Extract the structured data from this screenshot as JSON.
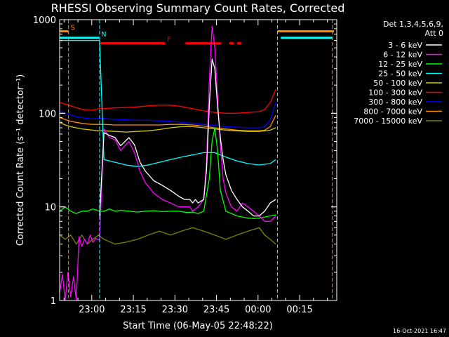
{
  "chart_data": {
    "type": "line",
    "title": "RHESSI Observing Summary Count Rates, Corrected",
    "xlabel": "Start Time (06-May-05 22:48:22)",
    "ylabel": "Corrected Count Rate (s⁻¹ detector⁻¹)",
    "yscale": "log",
    "ylim": [
      1,
      1000
    ],
    "xlim_minutes_after_start": [
      0,
      100
    ],
    "y_ticks": [
      "1",
      "10",
      "100",
      "1000"
    ],
    "x_ticks": [
      {
        "label": "23:00",
        "t": 11.6
      },
      {
        "label": "23:15",
        "t": 26.6
      },
      {
        "label": "23:30",
        "t": 41.6
      },
      {
        "label": "23:45",
        "t": 56.6
      },
      {
        "label": "00:00",
        "t": 71.6
      },
      {
        "label": "00:15",
        "t": 86.6
      }
    ],
    "legend": {
      "placement": "right",
      "header": [
        "Det 1,3,4,5,6,9,",
        "Att 0"
      ],
      "entries": [
        {
          "label": "3 - 6 keV",
          "color": "#ffffff"
        },
        {
          "label": "6 - 12 keV",
          "color": "#ff00ff"
        },
        {
          "label": "12 - 25 keV",
          "color": "#00ff00"
        },
        {
          "label": "25 - 50 keV",
          "color": "#00ffff"
        },
        {
          "label": "50 - 100 keV",
          "color": "#d4c800"
        },
        {
          "label": "100 - 300 keV",
          "color": "#ff0000"
        },
        {
          "label": "300 - 800 keV",
          "color": "#0000ff"
        },
        {
          "label": "800 - 7000 keV",
          "color": "#ff8c00"
        },
        {
          "label": "7000 - 15000 keV",
          "color": "#808000"
        }
      ]
    },
    "flags": [
      {
        "label": "S",
        "color": "#ff8c00",
        "y": 750,
        "segments": [
          [
            0,
            3.2
          ],
          [
            78.6,
            99.0
          ]
        ]
      },
      {
        "label": "N",
        "color": "#00ffff",
        "y": 640,
        "segments": [
          [
            0,
            14.2
          ],
          [
            79.8,
            98.4
          ]
        ]
      },
      {
        "label": "F",
        "color": "#ff0000",
        "y": 560,
        "segments": [
          [
            14.6,
            38.0
          ],
          [
            45.4,
            58.2
          ],
          [
            61.2,
            62.8
          ],
          [
            64.0,
            65.6
          ]
        ]
      }
    ],
    "vlines": [
      {
        "t": 3.2,
        "color": "#ff8c00"
      },
      {
        "t": 14.4,
        "color": "#00ffff"
      },
      {
        "t": 78.6,
        "color": "#00ffff"
      },
      {
        "t": 98.4,
        "color": "#ff8c00"
      }
    ],
    "series": [
      {
        "name": "3 - 6 keV",
        "color": "#ffffff",
        "x": [
          14.4,
          16,
          18,
          20,
          22,
          25,
          27,
          29,
          31,
          34,
          37,
          40,
          43,
          45,
          47,
          48,
          49,
          50,
          52,
          53,
          54,
          55,
          56,
          57,
          58,
          59,
          60,
          62,
          64,
          66,
          68,
          70,
          72,
          74,
          76,
          78
        ],
        "y": [
          8,
          62,
          58,
          55,
          45,
          55,
          46,
          30,
          24,
          19,
          17,
          15,
          13,
          12,
          12,
          11,
          12,
          11,
          12,
          25,
          120,
          380,
          300,
          120,
          55,
          32,
          22,
          15,
          12,
          10,
          9,
          8,
          8,
          9,
          11,
          12
        ]
      },
      {
        "name": "6 - 12 keV",
        "color": "#ff00ff",
        "x": [
          0,
          1,
          2,
          3,
          4,
          5,
          6,
          7,
          8,
          9,
          10,
          11,
          12,
          13,
          14.4,
          16,
          18,
          20,
          22,
          25,
          27,
          29,
          31,
          34,
          37,
          40,
          43,
          45,
          47,
          48,
          50,
          52,
          53,
          54,
          55,
          56,
          57,
          58,
          59,
          60,
          62,
          64,
          66,
          68,
          70,
          72,
          74,
          76,
          78
        ],
        "y": [
          1.2,
          1.9,
          1.0,
          2.0,
          1.1,
          1.8,
          1.0,
          4.8,
          3.8,
          4.5,
          4.0,
          5.0,
          4.2,
          4.6,
          4.4,
          68,
          55,
          52,
          40,
          50,
          38,
          24,
          18,
          14,
          12,
          11,
          10,
          10,
          10,
          9,
          10,
          12,
          30,
          220,
          850,
          500,
          150,
          45,
          20,
          14,
          10,
          9,
          11,
          10,
          9,
          8,
          7,
          7,
          8
        ]
      },
      {
        "name": "12 - 25 keV",
        "color": "#00ff00",
        "x": [
          0,
          2,
          4,
          6,
          8,
          10,
          12,
          14.4,
          16,
          18,
          20,
          22,
          25,
          28,
          31,
          34,
          37,
          40,
          43,
          46,
          48,
          50,
          52,
          54,
          55,
          56,
          57,
          58,
          60,
          62,
          64,
          66,
          68,
          70,
          72,
          74,
          76,
          78
        ],
        "y": [
          9,
          10,
          9,
          8.5,
          9,
          9,
          9.5,
          9,
          9,
          9.5,
          9,
          9.2,
          9,
          8.8,
          9,
          9.1,
          8.9,
          9,
          9,
          8.7,
          8.8,
          8.5,
          9,
          20,
          50,
          70,
          40,
          15,
          9,
          8.5,
          8,
          7.8,
          7.6,
          7.5,
          7.6,
          7.8,
          8,
          8.2
        ]
      },
      {
        "name": "25 - 50 keV",
        "color": "#00ffff",
        "x": [
          0,
          14.4,
          16,
          20,
          24,
          28,
          32,
          36,
          40,
          44,
          48,
          52,
          56,
          60,
          64,
          68,
          72,
          76,
          78
        ],
        "y": [
          600,
          600,
          32,
          30,
          28,
          27,
          28,
          30,
          32,
          34,
          36,
          38,
          38,
          34,
          31,
          29,
          28,
          29,
          32
        ]
      },
      {
        "name": "50 - 100 keV",
        "color": "#d4c800",
        "x": [
          0,
          2,
          4,
          6,
          8,
          10,
          12,
          14,
          16,
          20,
          24,
          28,
          32,
          36,
          40,
          44,
          48,
          52,
          56,
          60,
          64,
          68,
          72,
          76,
          78
        ],
        "y": [
          80,
          75,
          72,
          70,
          68,
          67,
          66,
          65,
          65,
          64,
          63,
          64,
          65,
          67,
          70,
          72,
          72,
          70,
          68,
          66,
          65,
          64,
          64,
          66,
          70
        ]
      },
      {
        "name": "100 - 300 keV",
        "color": "#ff0000",
        "x": [
          0,
          2,
          4,
          6,
          8,
          10,
          12,
          14,
          16,
          20,
          24,
          28,
          32,
          36,
          40,
          44,
          48,
          52,
          56,
          60,
          64,
          68,
          72,
          74,
          76,
          78
        ],
        "y": [
          130,
          125,
          120,
          115,
          110,
          108,
          108,
          112,
          112,
          114,
          115,
          117,
          120,
          122,
          122,
          118,
          112,
          106,
          102,
          100,
          100,
          102,
          104,
          110,
          130,
          180
        ]
      },
      {
        "name": "300 - 800 keV",
        "color": "#0000ff",
        "x": [
          0,
          2,
          4,
          6,
          8,
          10,
          12,
          14,
          16,
          20,
          24,
          28,
          32,
          36,
          40,
          44,
          48,
          52,
          56,
          60,
          64,
          68,
          72,
          74,
          76,
          78
        ],
        "y": [
          105,
          100,
          96,
          92,
          90,
          88,
          87,
          88,
          88,
          86,
          85,
          84,
          84,
          83,
          82,
          80,
          78,
          76,
          74,
          72,
          71,
          70,
          70,
          72,
          85,
          130
        ]
      },
      {
        "name": "800 - 7000 keV",
        "color": "#ff8c00",
        "x": [
          0,
          2,
          4,
          6,
          8,
          10,
          12,
          14,
          16,
          20,
          24,
          28,
          32,
          36,
          40,
          44,
          48,
          52,
          56,
          60,
          64,
          68,
          72,
          74,
          76,
          78
        ],
        "y": [
          90,
          86,
          82,
          80,
          78,
          77,
          76,
          76,
          76,
          75,
          75,
          75,
          75,
          75,
          76,
          76,
          75,
          73,
          70,
          68,
          66,
          65,
          65,
          66,
          72,
          95
        ]
      },
      {
        "name": "7000 - 15000 keV",
        "color": "#808000",
        "x": [
          0,
          2,
          4,
          6,
          8,
          10,
          12,
          14,
          16,
          20,
          24,
          28,
          32,
          36,
          40,
          44,
          48,
          52,
          56,
          60,
          64,
          68,
          72,
          74,
          76,
          78
        ],
        "y": [
          5,
          4.5,
          5,
          4,
          5,
          4,
          4.5,
          5,
          4.5,
          4,
          4.2,
          4.5,
          5,
          5.5,
          5,
          5.5,
          6,
          5.5,
          5,
          4.5,
          5,
          5.5,
          6,
          5,
          4.5,
          4
        ]
      }
    ],
    "annotations": {
      "flag_labels": [
        "S",
        "N",
        "F"
      ],
      "footer_date": "16-Oct-2021 16:47"
    }
  }
}
